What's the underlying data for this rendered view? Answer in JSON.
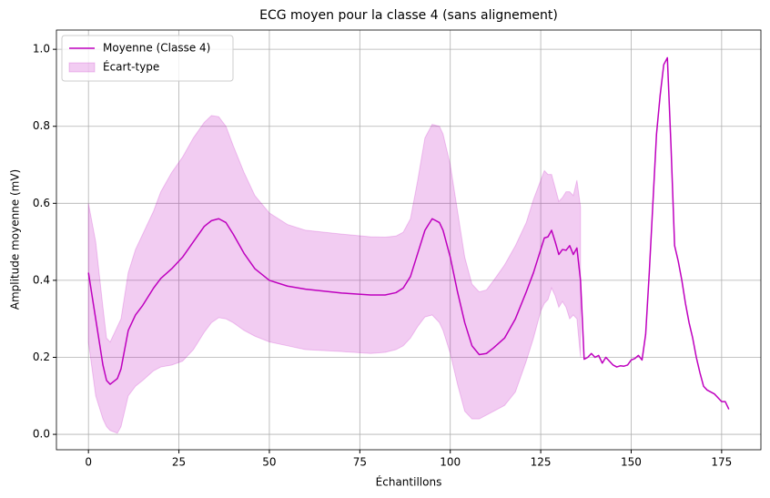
{
  "chart_data": {
    "type": "line",
    "title": "ECG moyen pour la classe 4 (sans alignement)",
    "x_label": "Échantillons",
    "y_label": "Amplitude moyenne (mV)",
    "x": [
      0,
      2,
      4,
      5,
      6,
      8,
      9,
      10,
      11,
      13,
      15,
      18,
      20,
      23,
      26,
      29,
      32,
      34,
      36,
      38,
      40,
      43,
      46,
      50,
      55,
      60,
      70,
      78,
      82,
      85,
      87,
      89,
      91,
      93,
      95,
      97,
      98,
      100,
      102,
      104,
      106,
      108,
      110,
      112,
      115,
      118,
      121,
      123,
      125,
      126,
      127,
      128,
      129,
      130,
      131,
      132,
      133,
      134,
      135,
      136,
      137,
      138,
      139,
      140,
      141,
      142,
      143,
      144,
      145,
      146,
      147,
      148,
      149,
      150,
      151,
      152,
      153,
      154,
      155,
      156,
      157,
      158,
      159,
      160,
      161,
      162,
      163,
      164,
      165,
      166,
      167,
      168,
      169,
      170,
      171,
      172,
      173,
      174,
      175,
      176,
      177
    ],
    "series": [
      {
        "name": "Moyenne (Classe 4)",
        "color": "#bf00bf",
        "values": [
          0.42,
          0.3,
          0.18,
          0.14,
          0.13,
          0.145,
          0.17,
          0.22,
          0.27,
          0.31,
          0.335,
          0.38,
          0.405,
          0.43,
          0.46,
          0.5,
          0.54,
          0.555,
          0.56,
          0.55,
          0.52,
          0.47,
          0.43,
          0.4,
          0.385,
          0.377,
          0.367,
          0.362,
          0.362,
          0.368,
          0.38,
          0.41,
          0.47,
          0.53,
          0.56,
          0.55,
          0.53,
          0.46,
          0.37,
          0.29,
          0.23,
          0.207,
          0.21,
          0.225,
          0.25,
          0.3,
          0.37,
          0.42,
          0.48,
          0.51,
          0.513,
          0.53,
          0.5,
          0.467,
          0.48,
          0.478,
          0.49,
          0.467,
          0.484,
          0.4,
          0.195,
          0.2,
          0.21,
          0.2,
          0.205,
          0.185,
          0.2,
          0.19,
          0.18,
          0.175,
          0.178,
          0.177,
          0.18,
          0.193,
          0.197,
          0.205,
          0.193,
          0.26,
          0.42,
          0.6,
          0.78,
          0.88,
          0.96,
          0.978,
          0.75,
          0.49,
          0.45,
          0.4,
          0.34,
          0.29,
          0.25,
          0.2,
          0.16,
          0.125,
          0.115,
          0.11,
          0.105,
          0.095,
          0.085,
          0.085,
          0.065
        ]
      },
      {
        "name": "Écart-type",
        "color": "#bf00bf",
        "opacity": 0.2,
        "upper": [
          0.6,
          0.5,
          0.33,
          0.25,
          0.24,
          0.28,
          0.3,
          0.36,
          0.42,
          0.48,
          0.52,
          0.58,
          0.63,
          0.68,
          0.72,
          0.77,
          0.81,
          0.828,
          0.825,
          0.8,
          0.75,
          0.68,
          0.62,
          0.575,
          0.545,
          0.53,
          0.52,
          0.513,
          0.512,
          0.515,
          0.525,
          0.56,
          0.66,
          0.77,
          0.805,
          0.8,
          0.78,
          0.7,
          0.58,
          0.46,
          0.39,
          0.37,
          0.375,
          0.4,
          0.44,
          0.49,
          0.55,
          0.61,
          0.66,
          0.685,
          0.675,
          0.675,
          0.64,
          0.605,
          0.615,
          0.63,
          0.63,
          0.62,
          0.66,
          0.59,
          null,
          null,
          null,
          null,
          null,
          null,
          null,
          null,
          null,
          null,
          null,
          null,
          null,
          null,
          null,
          null,
          null,
          null,
          null,
          null,
          null,
          null,
          null,
          null,
          null,
          null,
          null,
          null,
          null,
          null,
          null,
          null,
          null,
          null,
          null,
          null,
          null,
          null,
          null,
          null,
          null
        ],
        "lower": [
          0.24,
          0.1,
          0.04,
          0.02,
          0.01,
          0.003,
          0.02,
          0.06,
          0.1,
          0.125,
          0.14,
          0.165,
          0.175,
          0.18,
          0.19,
          0.22,
          0.265,
          0.29,
          0.303,
          0.3,
          0.29,
          0.27,
          0.255,
          0.24,
          0.23,
          0.22,
          0.215,
          0.21,
          0.213,
          0.22,
          0.23,
          0.25,
          0.28,
          0.305,
          0.31,
          0.29,
          0.27,
          0.21,
          0.13,
          0.06,
          0.04,
          0.04,
          0.05,
          0.06,
          0.075,
          0.11,
          0.19,
          0.25,
          0.32,
          0.34,
          0.35,
          0.38,
          0.36,
          0.33,
          0.345,
          0.33,
          0.3,
          0.31,
          0.3,
          0.2,
          null,
          null,
          null,
          null,
          null,
          null,
          null,
          null,
          null,
          null,
          null,
          null,
          null,
          null,
          null,
          null,
          null,
          null,
          null,
          null,
          null,
          null,
          null,
          null,
          null,
          null,
          null,
          null,
          null,
          null,
          null,
          null,
          null,
          null,
          null,
          null,
          null,
          null,
          null,
          null,
          null
        ]
      }
    ],
    "xlim": [
      -8.85,
      185.85
    ],
    "ylim": [
      -0.04,
      1.05
    ],
    "xticks": [
      0,
      25,
      50,
      75,
      100,
      125,
      150,
      175
    ],
    "yticks": [
      {
        "value": 0,
        "label": "0.0"
      },
      0.2,
      0.4,
      0.6,
      0.8,
      {
        "value": 1,
        "label": "1.0"
      }
    ],
    "grid": true,
    "legend": "upper left"
  }
}
